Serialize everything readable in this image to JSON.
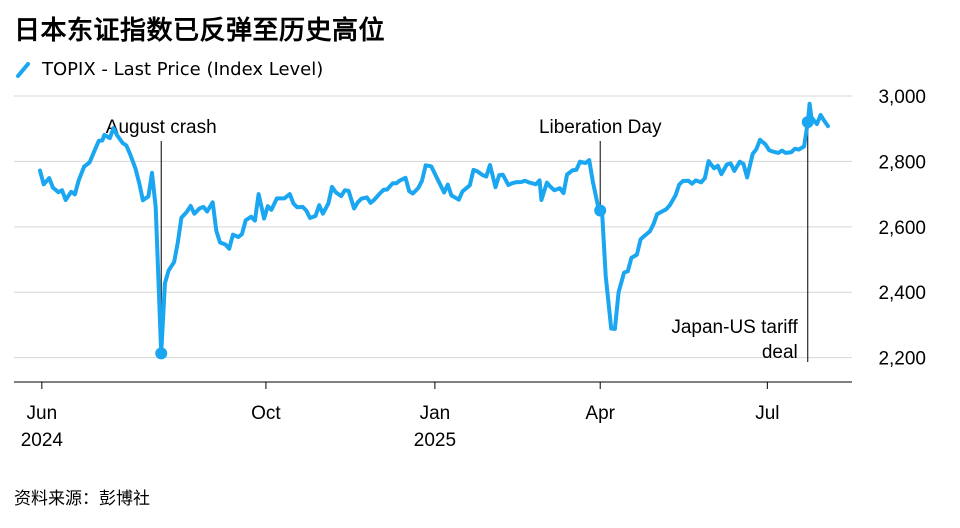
{
  "title": "日本东证指数已反弹至历史高位",
  "legend": {
    "label": "TOPIX - Last Price (Index Level)",
    "color": "#1aa6f0"
  },
  "source": "资料来源：彭博社",
  "chart_data": {
    "type": "line",
    "series": [
      {
        "name": "TOPIX - Last Price (Index Level)",
        "color": "#1aa6f0",
        "points": [
          [
            "2024-05-31",
            2772
          ],
          [
            "2024-06-02",
            2730
          ],
          [
            "2024-06-05",
            2749
          ],
          [
            "2024-06-07",
            2720
          ],
          [
            "2024-06-10",
            2706
          ],
          [
            "2024-06-12",
            2712
          ],
          [
            "2024-06-14",
            2682
          ],
          [
            "2024-06-17",
            2707
          ],
          [
            "2024-06-19",
            2699
          ],
          [
            "2024-06-21",
            2741
          ],
          [
            "2024-06-24",
            2784
          ],
          [
            "2024-06-27",
            2797
          ],
          [
            "2024-06-30",
            2837
          ],
          [
            "2024-07-02",
            2863
          ],
          [
            "2024-07-04",
            2864
          ],
          [
            "2024-07-05",
            2881
          ],
          [
            "2024-07-08",
            2871
          ],
          [
            "2024-07-10",
            2902
          ],
          [
            "2024-07-12",
            2880
          ],
          [
            "2024-07-15",
            2856
          ],
          [
            "2024-07-17",
            2849
          ],
          [
            "2024-07-19",
            2823
          ],
          [
            "2024-07-22",
            2778
          ],
          [
            "2024-07-24",
            2734
          ],
          [
            "2024-07-26",
            2681
          ],
          [
            "2024-07-29",
            2693
          ],
          [
            "2024-07-31",
            2765
          ],
          [
            "2024-08-02",
            2660
          ],
          [
            "2024-08-05",
            2213
          ],
          [
            "2024-08-07",
            2427
          ],
          [
            "2024-08-09",
            2466
          ],
          [
            "2024-08-12",
            2492
          ],
          [
            "2024-08-14",
            2552
          ],
          [
            "2024-08-16",
            2628
          ],
          [
            "2024-08-19",
            2646
          ],
          [
            "2024-08-21",
            2664
          ],
          [
            "2024-08-23",
            2640
          ],
          [
            "2024-08-26",
            2657
          ],
          [
            "2024-08-28",
            2661
          ],
          [
            "2024-08-30",
            2647
          ],
          [
            "2024-09-02",
            2675
          ],
          [
            "2024-09-04",
            2588
          ],
          [
            "2024-09-06",
            2552
          ],
          [
            "2024-09-09",
            2546
          ],
          [
            "2024-09-11",
            2533
          ],
          [
            "2024-09-13",
            2576
          ],
          [
            "2024-09-16",
            2569
          ],
          [
            "2024-09-18",
            2578
          ],
          [
            "2024-09-20",
            2620
          ],
          [
            "2024-09-23",
            2631
          ],
          [
            "2024-09-25",
            2619
          ],
          [
            "2024-09-27",
            2700
          ],
          [
            "2024-09-30",
            2625
          ],
          [
            "2024-10-02",
            2663
          ],
          [
            "2024-10-04",
            2652
          ],
          [
            "2024-10-07",
            2687
          ],
          [
            "2024-10-09",
            2687
          ],
          [
            "2024-10-11",
            2687
          ],
          [
            "2024-10-14",
            2700
          ],
          [
            "2024-10-16",
            2671
          ],
          [
            "2024-10-18",
            2660
          ],
          [
            "2024-10-21",
            2661
          ],
          [
            "2024-10-23",
            2650
          ],
          [
            "2024-10-25",
            2627
          ],
          [
            "2024-10-28",
            2633
          ],
          [
            "2024-10-30",
            2666
          ],
          [
            "2024-11-01",
            2640
          ],
          [
            "2024-11-04",
            2672
          ],
          [
            "2024-11-06",
            2722
          ],
          [
            "2024-11-08",
            2706
          ],
          [
            "2024-11-11",
            2694
          ],
          [
            "2024-11-13",
            2712
          ],
          [
            "2024-11-15",
            2710
          ],
          [
            "2024-11-18",
            2656
          ],
          [
            "2024-11-20",
            2675
          ],
          [
            "2024-11-22",
            2686
          ],
          [
            "2024-11-25",
            2690
          ],
          [
            "2024-11-27",
            2673
          ],
          [
            "2024-11-29",
            2683
          ],
          [
            "2024-12-02",
            2702
          ],
          [
            "2024-12-04",
            2713
          ],
          [
            "2024-12-06",
            2714
          ],
          [
            "2024-12-09",
            2733
          ],
          [
            "2024-12-11",
            2733
          ],
          [
            "2024-12-13",
            2742
          ],
          [
            "2024-12-16",
            2750
          ],
          [
            "2024-12-18",
            2709
          ],
          [
            "2024-12-20",
            2702
          ],
          [
            "2024-12-23",
            2719
          ],
          [
            "2024-12-25",
            2741
          ],
          [
            "2024-12-27",
            2788
          ],
          [
            "2024-12-30",
            2785
          ],
          [
            "2025-01-06",
            2705
          ],
          [
            "2025-01-08",
            2729
          ],
          [
            "2025-01-10",
            2696
          ],
          [
            "2025-01-14",
            2683
          ],
          [
            "2025-01-16",
            2708
          ],
          [
            "2025-01-20",
            2727
          ],
          [
            "2025-01-22",
            2774
          ],
          [
            "2025-01-24",
            2770
          ],
          [
            "2025-01-27",
            2758
          ],
          [
            "2025-01-29",
            2754
          ],
          [
            "2025-01-31",
            2789
          ],
          [
            "2025-02-03",
            2721
          ],
          [
            "2025-02-05",
            2758
          ],
          [
            "2025-02-07",
            2759
          ],
          [
            "2025-02-10",
            2728
          ],
          [
            "2025-02-12",
            2733
          ],
          [
            "2025-02-14",
            2736
          ],
          [
            "2025-02-17",
            2737
          ],
          [
            "2025-02-19",
            2741
          ],
          [
            "2025-02-21",
            2736
          ],
          [
            "2025-02-25",
            2730
          ],
          [
            "2025-02-27",
            2742
          ],
          [
            "2025-02-28",
            2682
          ],
          [
            "2025-03-03",
            2735
          ],
          [
            "2025-03-05",
            2722
          ],
          [
            "2025-03-07",
            2712
          ],
          [
            "2025-03-10",
            2718
          ],
          [
            "2025-03-12",
            2703
          ],
          [
            "2025-03-14",
            2760
          ],
          [
            "2025-03-17",
            2773
          ],
          [
            "2025-03-19",
            2774
          ],
          [
            "2025-03-21",
            2799
          ],
          [
            "2025-03-24",
            2795
          ],
          [
            "2025-03-26",
            2804
          ],
          [
            "2025-03-28",
            2737
          ],
          [
            "2025-03-31",
            2658
          ],
          [
            "2025-04-02",
            2650
          ],
          [
            "2025-04-04",
            2450
          ],
          [
            "2025-04-07",
            2289
          ],
          [
            "2025-04-09",
            2288
          ],
          [
            "2025-04-11",
            2400
          ],
          [
            "2025-04-14",
            2460
          ],
          [
            "2025-04-16",
            2464
          ],
          [
            "2025-04-18",
            2505
          ],
          [
            "2025-04-21",
            2515
          ],
          [
            "2025-04-23",
            2562
          ],
          [
            "2025-04-25",
            2572
          ],
          [
            "2025-04-28",
            2586
          ],
          [
            "2025-04-30",
            2608
          ],
          [
            "2025-05-02",
            2639
          ],
          [
            "2025-05-07",
            2654
          ],
          [
            "2025-05-09",
            2667
          ],
          [
            "2025-05-12",
            2696
          ],
          [
            "2025-05-14",
            2729
          ],
          [
            "2025-05-16",
            2740
          ],
          [
            "2025-05-19",
            2741
          ],
          [
            "2025-05-21",
            2732
          ],
          [
            "2025-05-23",
            2742
          ],
          [
            "2025-05-26",
            2736
          ],
          [
            "2025-05-28",
            2749
          ],
          [
            "2025-05-30",
            2801
          ],
          [
            "2025-06-02",
            2779
          ],
          [
            "2025-06-04",
            2787
          ],
          [
            "2025-06-06",
            2761
          ],
          [
            "2025-06-09",
            2791
          ],
          [
            "2025-06-11",
            2794
          ],
          [
            "2025-06-13",
            2771
          ],
          [
            "2025-06-16",
            2799
          ],
          [
            "2025-06-18",
            2792
          ],
          [
            "2025-06-20",
            2751
          ],
          [
            "2025-06-23",
            2823
          ],
          [
            "2025-06-25",
            2837
          ],
          [
            "2025-06-27",
            2866
          ],
          [
            "2025-06-30",
            2852
          ],
          [
            "2025-07-02",
            2834
          ],
          [
            "2025-07-04",
            2830
          ],
          [
            "2025-07-07",
            2826
          ],
          [
            "2025-07-09",
            2833
          ],
          [
            "2025-07-11",
            2826
          ],
          [
            "2025-07-14",
            2828
          ],
          [
            "2025-07-16",
            2839
          ],
          [
            "2025-07-18",
            2836
          ],
          [
            "2025-07-21",
            2846
          ],
          [
            "2025-07-23",
            2920
          ],
          [
            "2025-07-24",
            2976
          ],
          [
            "2025-07-25",
            2935
          ],
          [
            "2025-07-28",
            2914
          ],
          [
            "2025-07-30",
            2942
          ],
          [
            "2025-08-01",
            2924
          ],
          [
            "2025-08-03",
            2908
          ]
        ]
      }
    ],
    "x_ticks": [
      {
        "date": "2024-06-01",
        "label": "Jun",
        "year": "2024"
      },
      {
        "date": "2024-10-01",
        "label": "Oct",
        "year": ""
      },
      {
        "date": "2025-01-01",
        "label": "Jan",
        "year": "2025"
      },
      {
        "date": "2025-04-01",
        "label": "Apr",
        "year": ""
      },
      {
        "date": "2025-07-01",
        "label": "Jul",
        "year": ""
      }
    ],
    "y_ticks": [
      {
        "value": 2200,
        "label": "2,200"
      },
      {
        "value": 2400,
        "label": "2,400"
      },
      {
        "value": 2600,
        "label": "2,600"
      },
      {
        "value": 2800,
        "label": "2,800"
      },
      {
        "value": 3000,
        "label": "3,000"
      }
    ],
    "xlim": [
      "2024-05-31",
      "2025-08-15"
    ],
    "ylim": [
      2150,
      3000
    ],
    "grid": "horizontal",
    "y_axis_side": "right",
    "annotations": [
      {
        "date": "2024-08-05",
        "value": 2213,
        "label": [
          "August crash"
        ],
        "label_side": "above"
      },
      {
        "date": "2025-04-01",
        "value": 2650,
        "label": [
          "Liberation Day"
        ],
        "label_side": "above"
      },
      {
        "date": "2025-07-23",
        "value": 2920,
        "label": [
          "Japan-US tariff",
          "deal"
        ],
        "label_side": "below"
      }
    ]
  }
}
